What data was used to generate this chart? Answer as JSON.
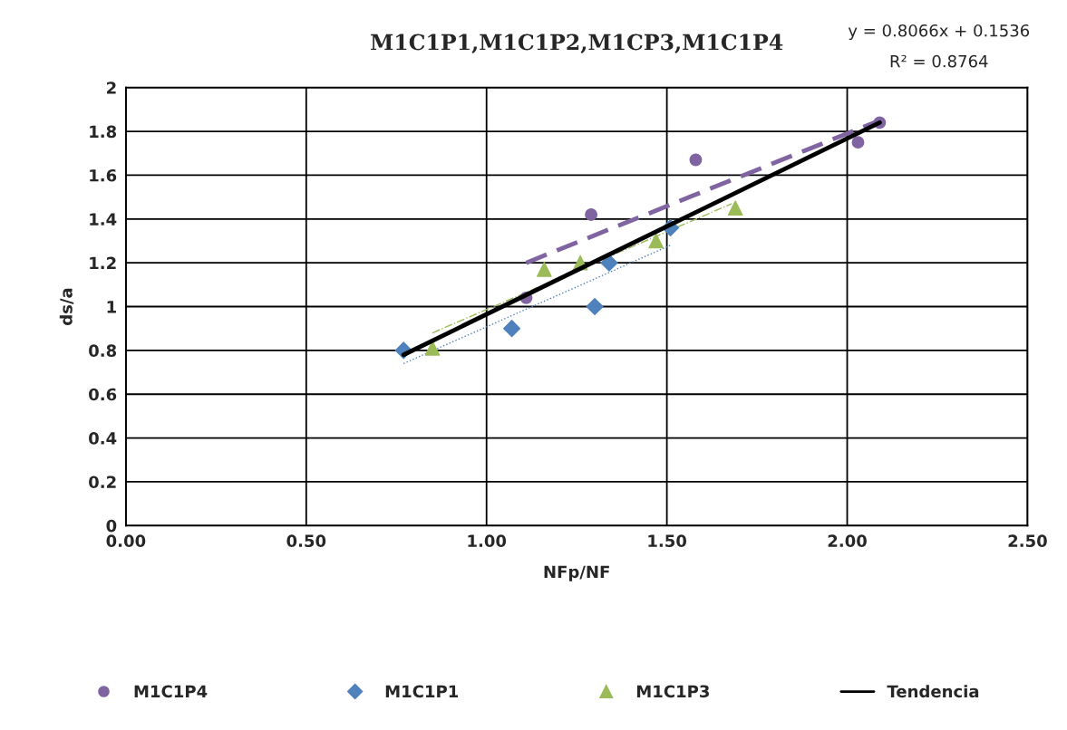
{
  "chart_data": {
    "type": "scatter",
    "title": "M1C1P1,M1C1P2,M1CP3,M1C1P4",
    "xlabel": "NFp/NF",
    "ylabel": "ds/a",
    "annotations": [
      "y = 0.8066x + 0.1536",
      "R² = 0.8764"
    ],
    "xlim": [
      0,
      2.5
    ],
    "ylim": [
      0,
      2
    ],
    "xticks": [
      {
        "value": 0,
        "label": "0.00"
      },
      {
        "value": 0.5,
        "label": "0.50"
      },
      {
        "value": 1,
        "label": "1.00"
      },
      {
        "value": 1.5,
        "label": "1.50"
      },
      {
        "value": 2,
        "label": "2.00"
      },
      {
        "value": 2.5,
        "label": "2.50"
      }
    ],
    "yticks": [
      0,
      0.2,
      0.4,
      0.6,
      0.8,
      1,
      1.2,
      1.4,
      1.6,
      1.8,
      2
    ],
    "grid": true,
    "legend": "bottom",
    "series": [
      {
        "name": "M1C1P4",
        "marker": "circle",
        "color": "#8064a2",
        "x": [
          1.11,
          1.29,
          1.58,
          2.03,
          2.09
        ],
        "values": [
          1.04,
          1.42,
          1.67,
          1.75,
          1.84
        ]
      },
      {
        "name": "M1C1P1",
        "marker": "diamond",
        "color": "#4f81bd",
        "x": [
          0.77,
          1.07,
          1.3,
          1.34,
          1.51
        ],
        "values": [
          0.8,
          0.9,
          1.0,
          1.2,
          1.36
        ]
      },
      {
        "name": "M1C1P3",
        "marker": "triangle",
        "color": "#9bbb59",
        "x": [
          0.85,
          1.16,
          1.26,
          1.47,
          1.69
        ],
        "values": [
          0.81,
          1.17,
          1.2,
          1.3,
          1.45
        ]
      },
      {
        "name": "Tendencia",
        "type": "line",
        "line_style": "solid",
        "color": "#000000",
        "x": [
          0.77,
          2.09
        ],
        "values": [
          0.78,
          1.84
        ]
      },
      {
        "type": "line",
        "line_style": "dashed",
        "color": "#8064a2",
        "x": [
          1.11,
          2.09
        ],
        "values": [
          1.2,
          1.85
        ]
      },
      {
        "type": "line",
        "line_style": "dotted",
        "color": "#4f81bd",
        "x": [
          0.77,
          1.51
        ],
        "values": [
          0.74,
          1.28
        ]
      },
      {
        "type": "line",
        "line_style": "dashdot",
        "color": "#9bbb59",
        "x": [
          0.85,
          1.68
        ],
        "values": [
          0.88,
          1.47
        ]
      }
    ]
  }
}
